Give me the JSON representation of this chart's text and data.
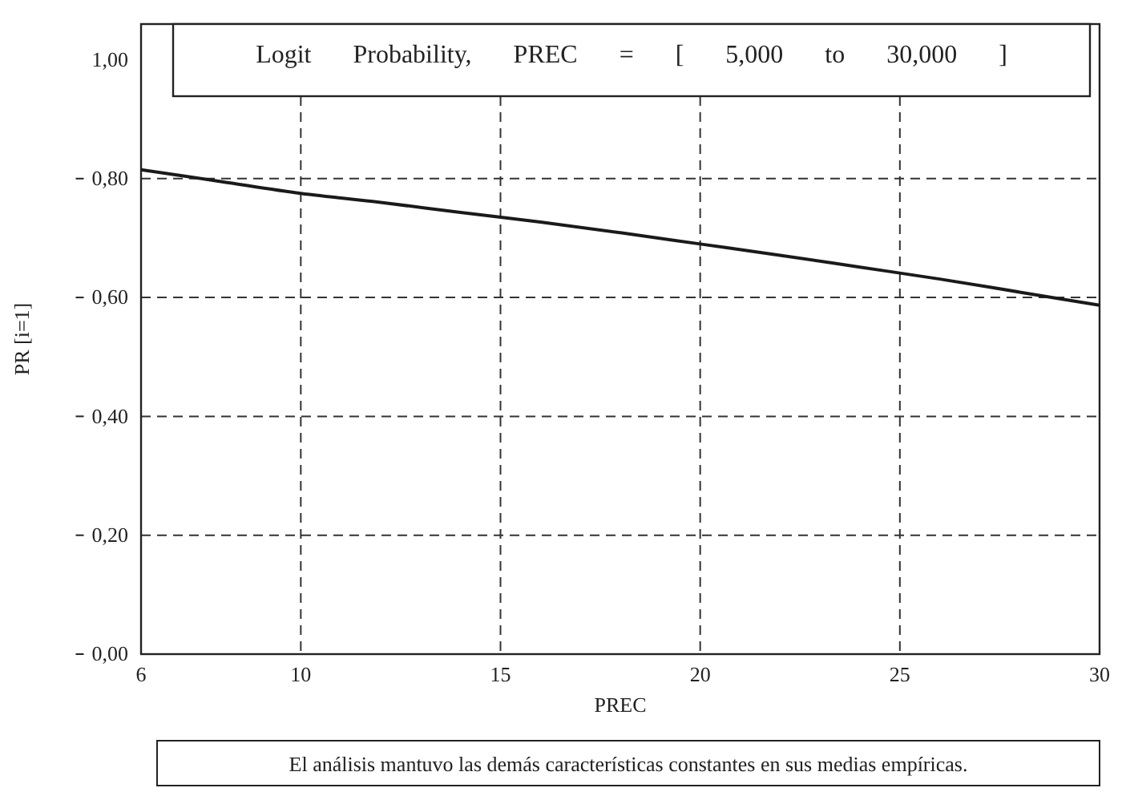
{
  "chart_data": {
    "type": "line",
    "title": "Logit Probability, PREC = [ 5,000 to 30,000 ]",
    "xlabel": "PREC",
    "ylabel": "PR [i=1]",
    "annotations": [
      "El análisis mantuvo las demás características constantes en sus medias empíricas."
    ],
    "x": [
      6,
      8,
      10,
      12,
      14,
      16,
      18,
      20,
      22,
      24,
      26,
      28,
      30
    ],
    "series": [
      {
        "color": "#1a1a1a",
        "values": [
          0.815,
          0.795,
          0.775,
          0.76,
          0.743,
          0.727,
          0.709,
          0.69,
          0.671,
          0.651,
          0.631,
          0.609,
          0.587
        ]
      }
    ],
    "xlim": [
      6,
      30
    ],
    "xticks": [
      6,
      10,
      15,
      20,
      25,
      30
    ],
    "ylim": [
      0,
      1.06
    ],
    "yticks": [
      {
        "value": 0,
        "label": "0,00"
      },
      {
        "value": 0.2,
        "label": "0,20"
      },
      {
        "value": 0.4,
        "label": "0,40"
      },
      {
        "value": 0.6,
        "label": "0,60"
      },
      {
        "value": 0.8,
        "label": "0,80"
      },
      {
        "value": 1,
        "label": "1,00"
      }
    ],
    "grid": true,
    "line_style": "solid",
    "marker": "none"
  }
}
